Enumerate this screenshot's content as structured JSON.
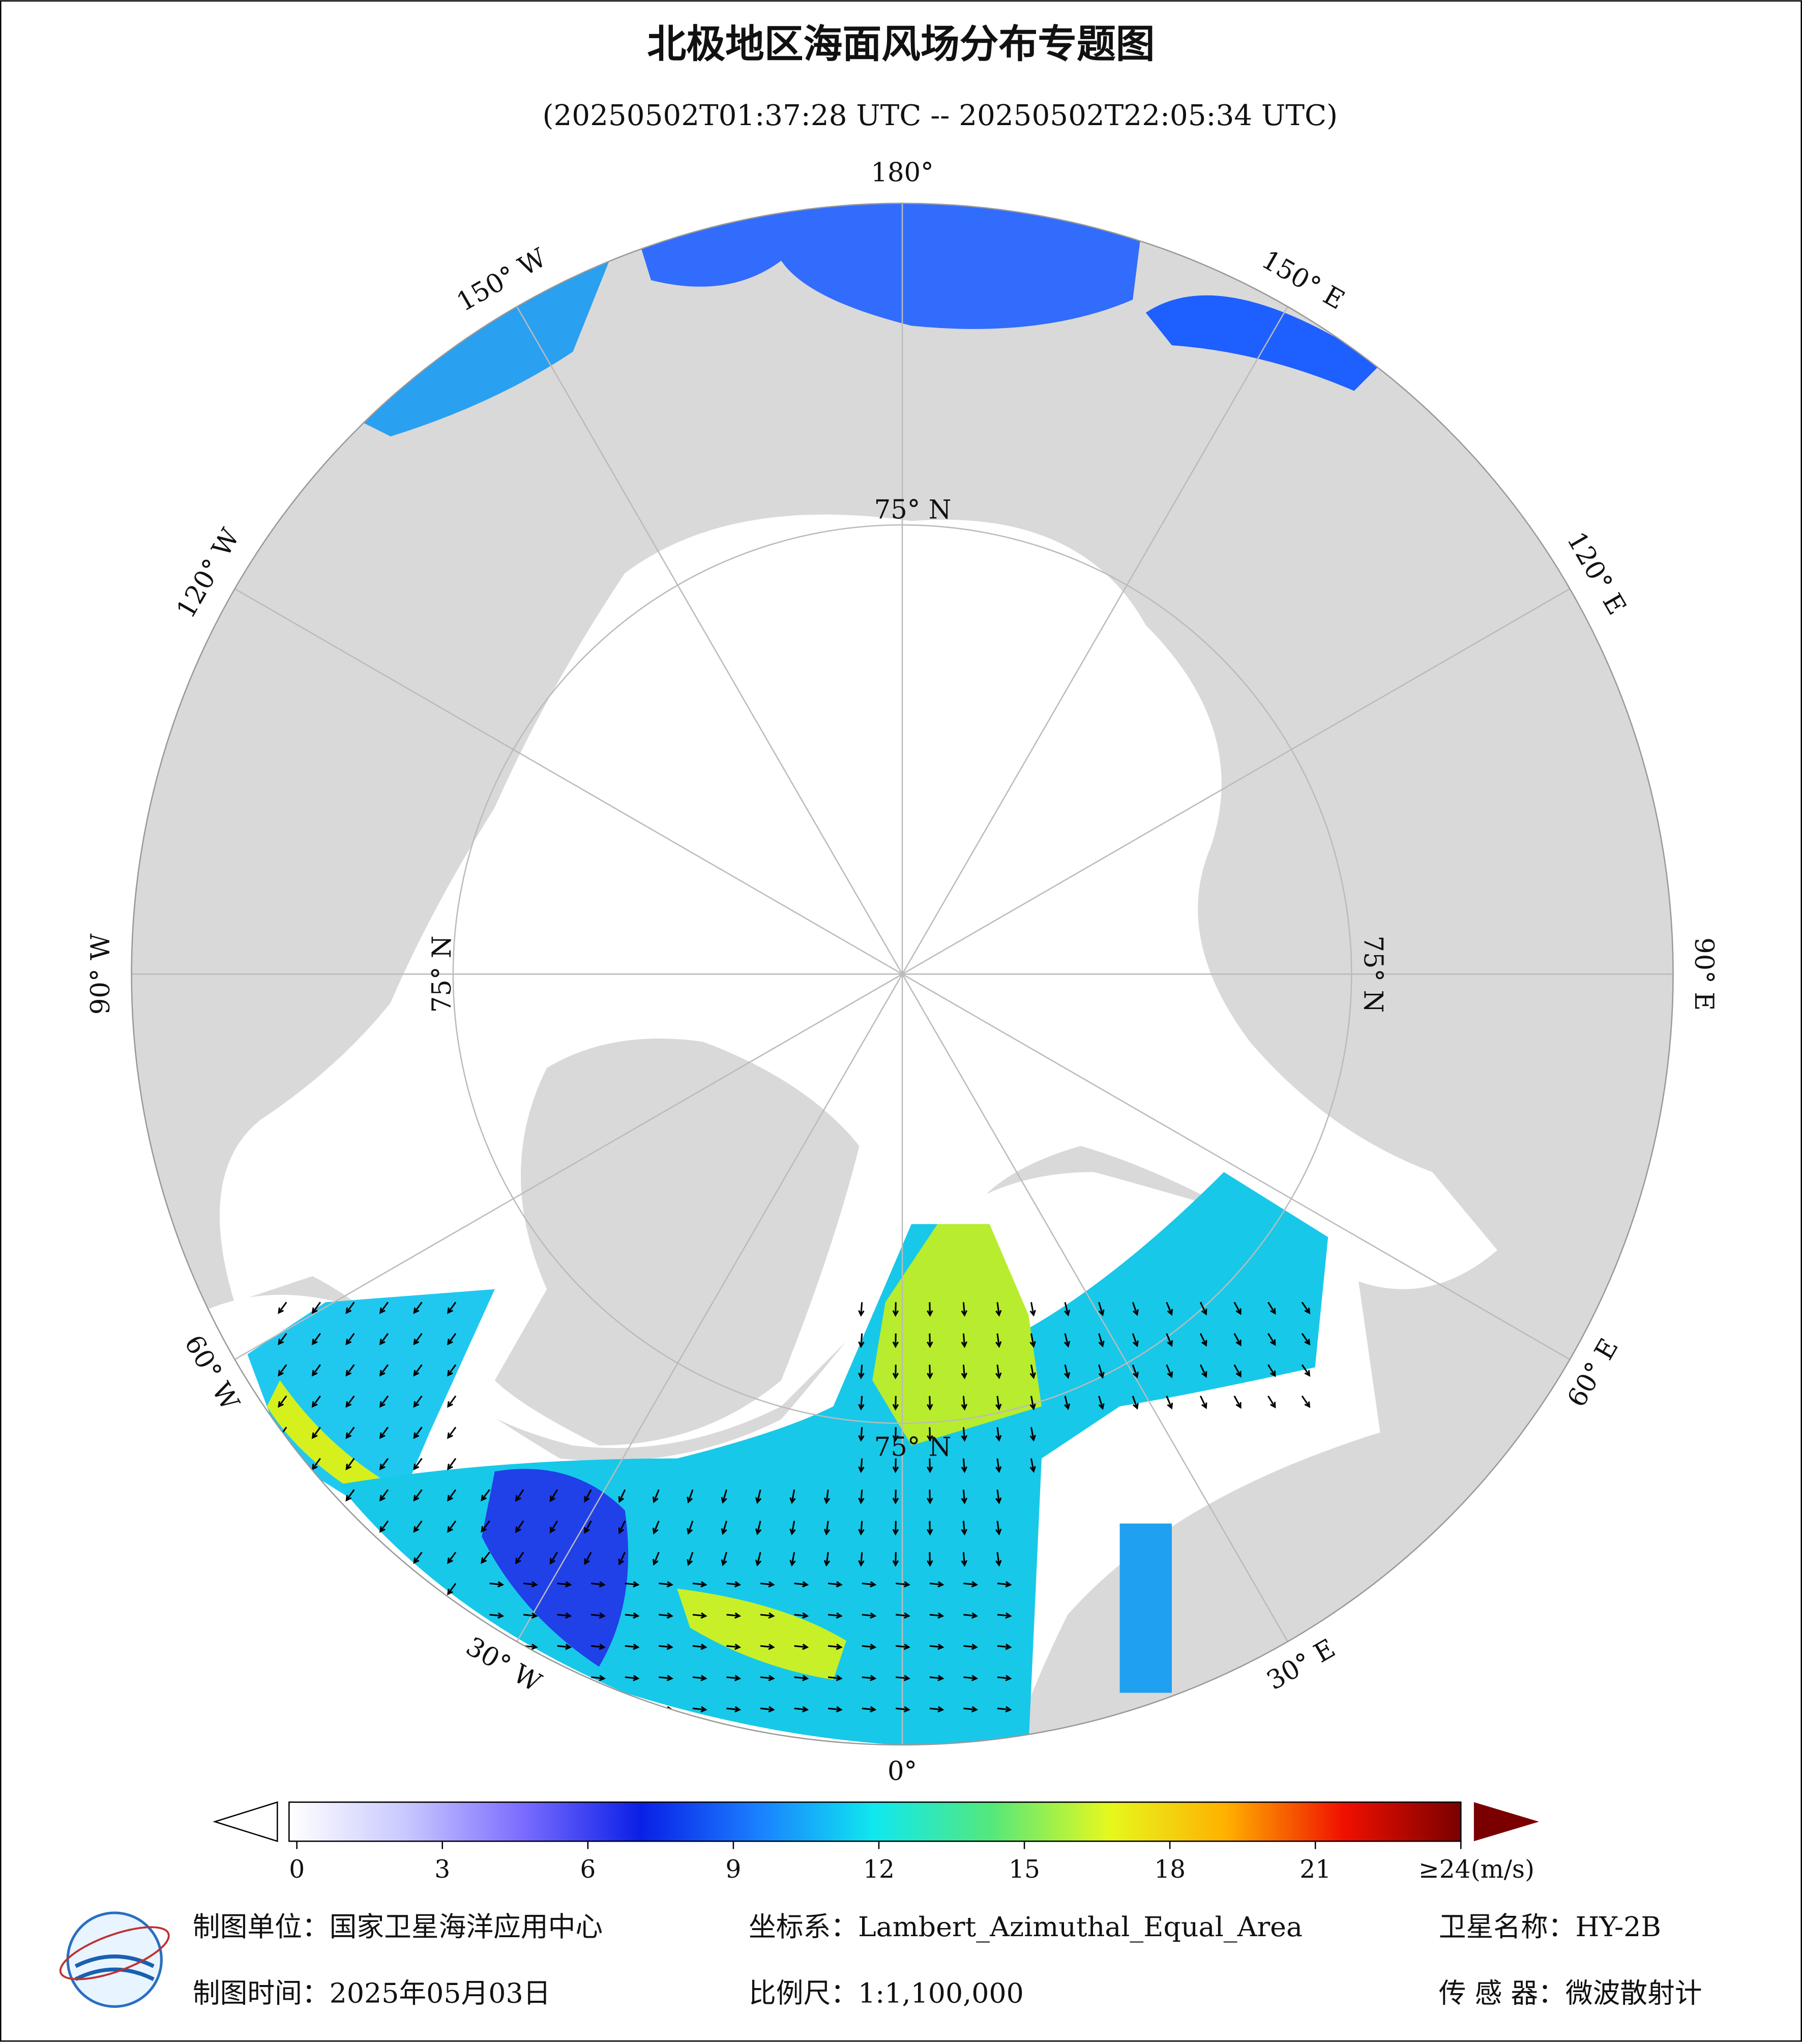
{
  "title": "北极地区海面风场分布专题图",
  "subtitle": "(20250502T01:37:28 UTC -- 20250502T22:05:34 UTC)",
  "map": {
    "lon_labels": [
      "180°",
      "150° E",
      "120° E",
      "90° E",
      "60° E",
      "30° E",
      "0°",
      "30° W",
      "60° W",
      "90° W",
      "120° W",
      "150° W"
    ],
    "lat_labels": [
      "75° N",
      "75° N",
      "75° N",
      "75° N"
    ]
  },
  "colorbar": {
    "lim": [
      0,
      24
    ],
    "ticks": [
      0,
      3,
      6,
      9,
      12,
      15,
      18,
      21,
      {
        "value": 24,
        "label": "≥24(m/s)"
      }
    ],
    "colors": [
      "#ffffff",
      "#c8c8ff",
      "#7a6cff",
      "#0a1fe6",
      "#1a7fff",
      "#10e8ef",
      "#55e87a",
      "#e6f81e",
      "#ffb000",
      "#f01000",
      "#7a0000"
    ]
  },
  "footer": {
    "unit": "制图单位：国家卫星海洋应用中心",
    "crs": "坐标系：Lambert_Azimuthal_Equal_Area",
    "satellite": "卫星名称：HY-2B",
    "date": "制图时间：2025年05月03日",
    "scale": "比例尺：1:1,100,000",
    "sensor": "传 感 器：微波散射计"
  }
}
